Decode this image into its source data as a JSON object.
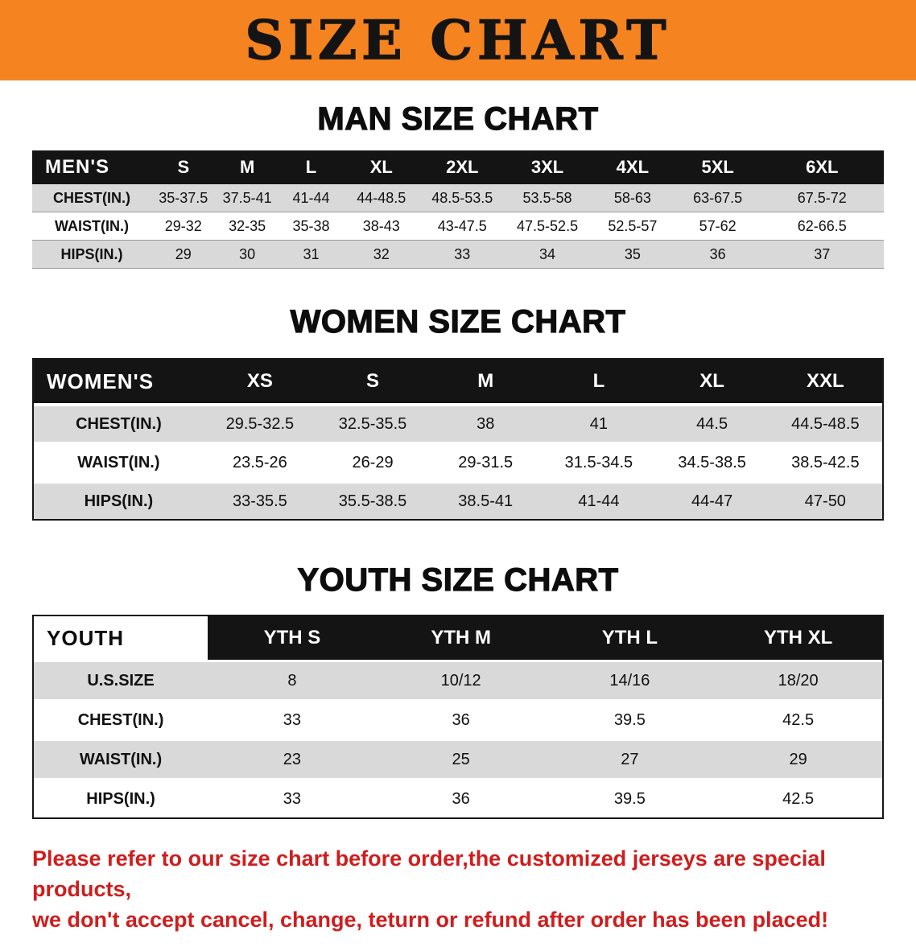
{
  "banner": {
    "title": "SIZE CHART",
    "bg_color": "#f5831f"
  },
  "sections": [
    {
      "key": "men",
      "heading": "MAN SIZE CHART",
      "table": {
        "name": "mens-size-table",
        "header": [
          "MEN'S",
          "S",
          "M",
          "L",
          "XL",
          "2XL",
          "3XL",
          "4XL",
          "5XL",
          "6XL"
        ],
        "rows": [
          {
            "label": "CHEST(IN.)",
            "values": [
              "35-37.5",
              "37.5-41",
              "41-44",
              "44-48.5",
              "48.5-53.5",
              "53.5-58",
              "58-63",
              "63-67.5",
              "67.5-72"
            ]
          },
          {
            "label": "WAIST(IN.)",
            "values": [
              "29-32",
              "32-35",
              "35-38",
              "38-43",
              "43-47.5",
              "47.5-52.5",
              "52.5-57",
              "57-62",
              "62-66.5"
            ]
          },
          {
            "label": "HIPS(IN.)",
            "values": [
              "29",
              "30",
              "31",
              "32",
              "33",
              "34",
              "35",
              "36",
              "37"
            ]
          }
        ]
      }
    },
    {
      "key": "women",
      "heading": "WOMEN SIZE CHART",
      "table": {
        "name": "womens-size-table",
        "header": [
          "WOMEN'S",
          "XS",
          "S",
          "M",
          "L",
          "XL",
          "XXL"
        ],
        "rows": [
          {
            "label": "CHEST(IN.)",
            "values": [
              "29.5-32.5",
              "32.5-35.5",
              "38",
              "41",
              "44.5",
              "44.5-48.5"
            ]
          },
          {
            "label": "WAIST(IN.)",
            "values": [
              "23.5-26",
              "26-29",
              "29-31.5",
              "31.5-34.5",
              "34.5-38.5",
              "38.5-42.5"
            ]
          },
          {
            "label": "HIPS(IN.)",
            "values": [
              "33-35.5",
              "35.5-38.5",
              "38.5-41",
              "41-44",
              "44-47",
              "47-50"
            ]
          }
        ]
      }
    },
    {
      "key": "youth",
      "heading": "YOUTH SIZE CHART",
      "table": {
        "name": "youth-size-table",
        "header": [
          "YOUTH",
          "YTH S",
          "YTH M",
          "YTH L",
          "YTH XL"
        ],
        "rows": [
          {
            "label": "U.S.SIZE",
            "values": [
              "8",
              "10/12",
              "14/16",
              "18/20"
            ]
          },
          {
            "label": "CHEST(IN.)",
            "values": [
              "33",
              "36",
              "39.5",
              "42.5"
            ]
          },
          {
            "label": "WAIST(IN.)",
            "values": [
              "23",
              "25",
              "27",
              "29"
            ]
          },
          {
            "label": "HIPS(IN.)",
            "values": [
              "33",
              "36",
              "39.5",
              "42.5"
            ]
          }
        ]
      }
    }
  ],
  "disclaimer": {
    "line1": "Please refer to our size chart before order,the customized jerseys are special products,",
    "line2": "we don't accept cancel, change, teturn or refund after order has been placed!",
    "color": "#cf1d1d"
  }
}
